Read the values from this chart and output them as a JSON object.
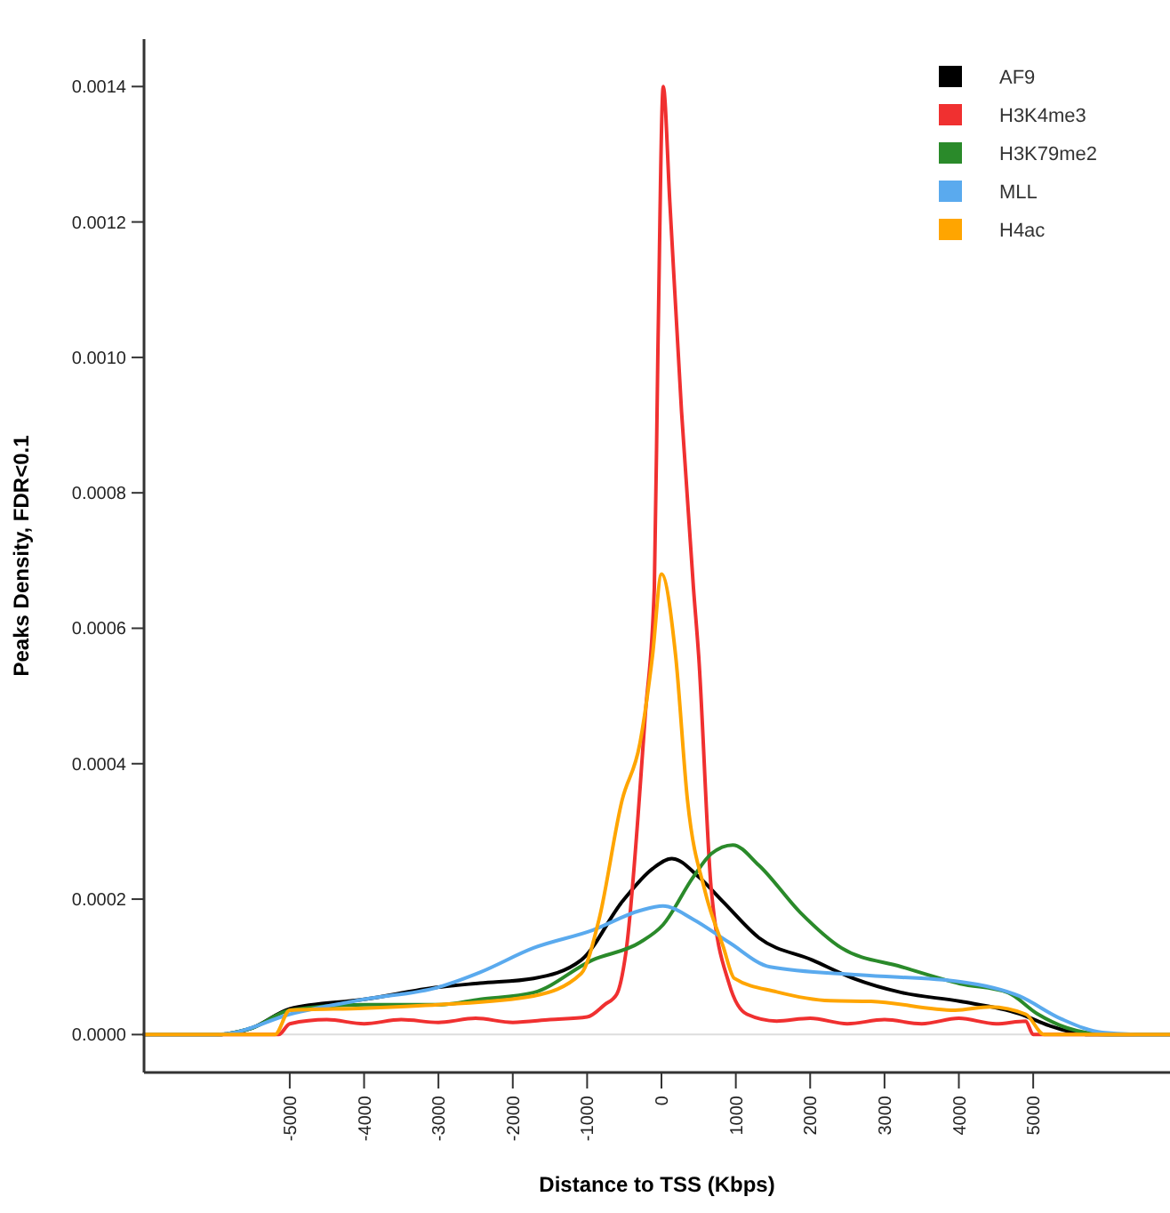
{
  "chart_data": {
    "type": "line",
    "xlabel": "Distance to TSS (Kbps)",
    "ylabel": "Peaks Density, FDR<0.1",
    "xlim": [
      -6960,
      6840
    ],
    "ylim": [
      -5.6e-05,
      0.00147
    ],
    "xticks": [
      -5000,
      -4000,
      -3000,
      -2000,
      -1000,
      0,
      1000,
      2000,
      3000,
      4000,
      5000
    ],
    "yticks": [
      {
        "value": 0,
        "label": "0.0000"
      },
      {
        "value": 0.0002,
        "label": "0.0002"
      },
      {
        "value": 0.0004,
        "label": "0.0004"
      },
      {
        "value": 0.0006,
        "label": "0.0006"
      },
      {
        "value": 0.0008,
        "label": "0.0008"
      },
      {
        "value": 0.001,
        "label": "0.0010"
      },
      {
        "value": 0.0012,
        "label": "0.0012"
      },
      {
        "value": 0.0014,
        "label": "0.0014"
      }
    ],
    "grid": false,
    "legend": "top right",
    "line_style": "solid",
    "ref_lines": [
      {
        "axis": "y",
        "value": 0,
        "color": "#dddddd"
      }
    ],
    "series": [
      {
        "name": "AF9",
        "color": "#000000",
        "x": [
          -6960,
          -6000,
          -5500,
          -5000,
          -4000,
          -3000,
          -2440,
          -1720,
          -1080,
          -530,
          -120,
          140,
          500,
          830,
          1310,
          2030,
          2580,
          3230,
          4020,
          4810,
          5220,
          5770,
          6840
        ],
        "values": [
          0,
          0,
          1e-05,
          3.8e-05,
          5.2e-05,
          7e-05,
          7.6e-05,
          8.3e-05,
          0.00011,
          0.000196,
          0.000245,
          0.00026,
          0.000233,
          0.000196,
          0.000143,
          0.00011,
          8.3e-05,
          6.2e-05,
          4.9e-05,
          3.1e-05,
          1.3e-05,
          0,
          0
        ]
      },
      {
        "name": "H3K4me3",
        "color": "#f03030",
        "x": [
          -6960,
          -5150,
          -5000,
          -4500,
          -4000,
          -3500,
          -3000,
          -2500,
          -2000,
          -1500,
          -1000,
          -766,
          -600,
          -480,
          -215,
          -96,
          -48,
          24,
          112,
          270,
          430,
          500,
          670,
          910,
          1150,
          1550,
          2000,
          2500,
          3000,
          3500,
          4000,
          4500,
          4900,
          5000,
          6840
        ],
        "values": [
          0,
          0,
          1.6e-05,
          2.2e-05,
          1.6e-05,
          2.2e-05,
          1.8e-05,
          2.4e-05,
          1.8e-05,
          2.2e-05,
          2.6e-05,
          4.4e-05,
          6e-05,
          0.00012,
          0.000476,
          0.00066,
          0.00101,
          0.0014,
          0.00123,
          0.00092,
          0.00066,
          0.00056,
          0.000214,
          7.5e-05,
          3e-05,
          2e-05,
          2.4e-05,
          1.6e-05,
          2.2e-05,
          1.6e-05,
          2.4e-05,
          1.6e-05,
          2e-05,
          0,
          0
        ]
      },
      {
        "name": "H3K79me2",
        "color": "#2a8a2a",
        "x": [
          -6960,
          -6000,
          -5500,
          -5000,
          -4000,
          -3000,
          -2440,
          -1720,
          -930,
          -290,
          20,
          430,
          670,
          960,
          1310,
          1870,
          2420,
          3230,
          4020,
          4660,
          5050,
          5450,
          6000,
          6840
        ],
        "values": [
          0,
          0,
          1e-05,
          3.6e-05,
          4.4e-05,
          4.4e-05,
          5.2e-05,
          6.2e-05,
          0.00011,
          0.000136,
          0.000162,
          0.000233,
          0.000267,
          0.00028,
          0.00025,
          0.00018,
          0.000128,
          0.0001,
          7.5e-05,
          6.2e-05,
          3.1e-05,
          1e-05,
          0,
          0
        ]
      },
      {
        "name": "MLL",
        "color": "#5aaaee",
        "x": [
          -6960,
          -6000,
          -5790,
          -5000,
          -4000,
          -3000,
          -2440,
          -1720,
          -930,
          -290,
          20,
          430,
          910,
          1460,
          2660,
          4020,
          4810,
          5380,
          5930,
          6500,
          6840
        ],
        "values": [
          0,
          0,
          2e-06,
          3e-05,
          5.2e-05,
          7e-05,
          9.2e-05,
          0.000128,
          0.000154,
          0.000183,
          0.00019,
          0.00017,
          0.000136,
          0.0001,
          8.8e-05,
          7.8e-05,
          5.7e-05,
          2.3e-05,
          3e-06,
          0,
          0
        ]
      },
      {
        "name": "H4ac",
        "color": "#ffa500",
        "x": [
          -6960,
          -5200,
          -5000,
          -4000,
          -3000,
          -1720,
          -1080,
          -840,
          -530,
          -290,
          -120,
          0,
          190,
          350,
          590,
          830,
          980,
          1550,
          2270,
          2820,
          3950,
          4420,
          4900,
          5150,
          6840
        ],
        "values": [
          0,
          0,
          3.6e-05,
          3.9e-05,
          4.4e-05,
          5.7e-05,
          9e-05,
          0.00017,
          0.000346,
          0.00043,
          0.00056,
          0.00068,
          0.00056,
          0.000346,
          0.00021,
          0.00013,
          8.3e-05,
          6.3e-05,
          5e-05,
          4.9e-05,
          3.6e-05,
          4.1e-05,
          3e-05,
          0,
          0
        ]
      }
    ]
  }
}
